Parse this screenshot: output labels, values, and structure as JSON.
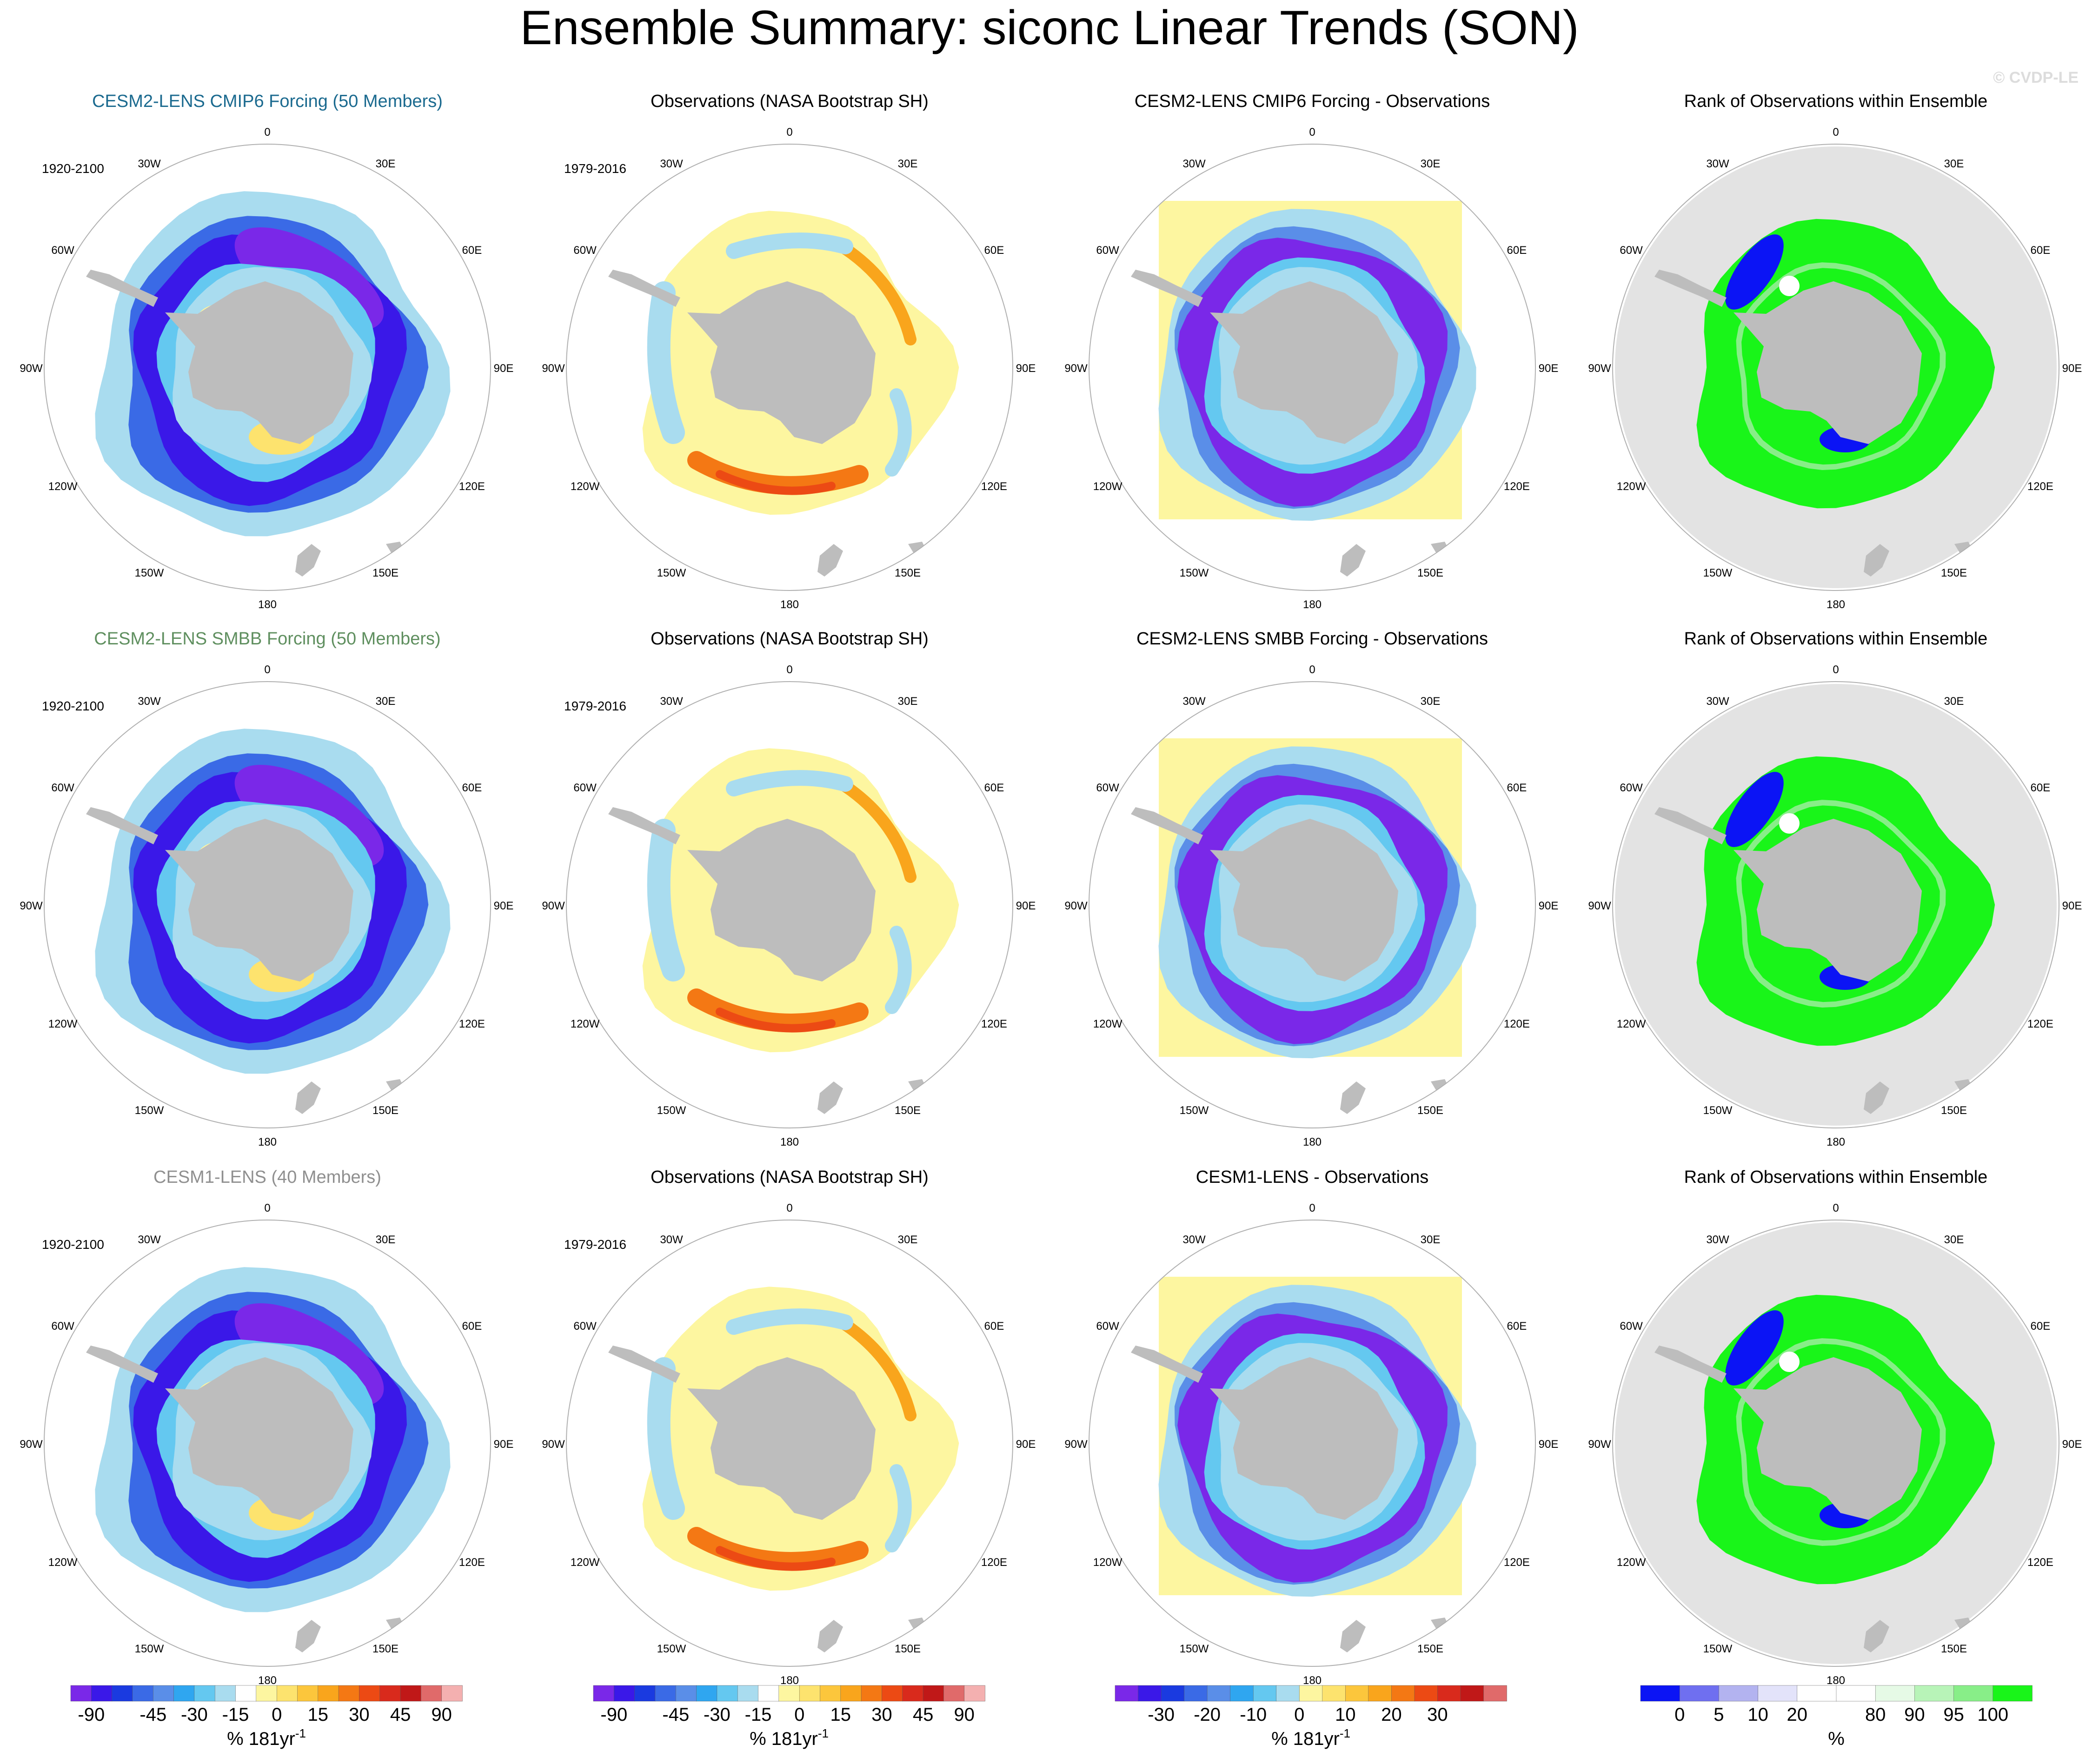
{
  "figure": {
    "title": "Ensemble Summary: siconc Linear Trends (SON)",
    "watermark": "© CVDP-LE"
  },
  "colors": {
    "land": "#bdbdbd",
    "mask": "#e3e3e3",
    "outline": "#b0b0b0",
    "title_row1": "#1b6a8f",
    "title_row2": "#5f8f5f",
    "title_row3": "#8f8f8f",
    "trend_scale": [
      "#7a28e8",
      "#3a18e8",
      "#1a3ae0",
      "#3a6ae6",
      "#5a8ee8",
      "#2fa6f0",
      "#64c8f0",
      "#a9dcef",
      "#ffffff",
      "#fdf6a0",
      "#fde36e",
      "#fcc63c",
      "#f9a51c",
      "#f47814",
      "#ec4a14",
      "#d92a1c",
      "#c01818",
      "#e06a6a",
      "#f4b0b0"
    ],
    "rank_scale": [
      "#0b14f5",
      "#6f6ff0",
      "#b3b3f0",
      "#e3e3fa",
      "#ffffff",
      "#ffffff",
      "#e6fae6",
      "#b8f4b8",
      "#88ee88",
      "#19f519"
    ]
  },
  "polar_axis": {
    "longitude_labels": [
      "0",
      "30E",
      "60E",
      "90E",
      "120E",
      "150E",
      "180",
      "150W",
      "120W",
      "90W",
      "60W",
      "30W"
    ]
  },
  "chart_data": [
    {
      "type": "heatmap",
      "row": 1,
      "col": 1,
      "title": "CESM2-LENS CMIP6 Forcing (50 Members)",
      "period": "1920-2100",
      "field": "model_trend",
      "projection": "south polar stereographic"
    },
    {
      "type": "heatmap",
      "row": 1,
      "col": 2,
      "title": "Observations (NASA Bootstrap SH)",
      "period": "1979-2016",
      "field": "obs_trend",
      "projection": "south polar stereographic"
    },
    {
      "type": "heatmap",
      "row": 1,
      "col": 3,
      "title": "CESM2-LENS CMIP6 Forcing - Observations",
      "period": "",
      "field": "difference",
      "projection": "south polar stereographic"
    },
    {
      "type": "heatmap",
      "row": 1,
      "col": 4,
      "title": "Rank of Observations within Ensemble",
      "period": "",
      "field": "rank",
      "projection": "south polar stereographic"
    },
    {
      "type": "heatmap",
      "row": 2,
      "col": 1,
      "title": "CESM2-LENS SMBB Forcing (50 Members)",
      "period": "1920-2100",
      "field": "model_trend",
      "projection": "south polar stereographic"
    },
    {
      "type": "heatmap",
      "row": 2,
      "col": 2,
      "title": "Observations (NASA Bootstrap SH)",
      "period": "1979-2016",
      "field": "obs_trend",
      "projection": "south polar stereographic"
    },
    {
      "type": "heatmap",
      "row": 2,
      "col": 3,
      "title": "CESM2-LENS SMBB Forcing - Observations",
      "period": "",
      "field": "difference",
      "projection": "south polar stereographic"
    },
    {
      "type": "heatmap",
      "row": 2,
      "col": 4,
      "title": "Rank of Observations within Ensemble",
      "period": "",
      "field": "rank",
      "projection": "south polar stereographic"
    },
    {
      "type": "heatmap",
      "row": 3,
      "col": 1,
      "title": "CESM1-LENS (40 Members)",
      "period": "1920-2100",
      "field": "model_trend",
      "projection": "south polar stereographic"
    },
    {
      "type": "heatmap",
      "row": 3,
      "col": 2,
      "title": "Observations (NASA Bootstrap SH)",
      "period": "1979-2016",
      "field": "obs_trend",
      "projection": "south polar stereographic"
    },
    {
      "type": "heatmap",
      "row": 3,
      "col": 3,
      "title": "CESM1-LENS - Observations",
      "period": "",
      "field": "difference",
      "projection": "south polar stereographic"
    },
    {
      "type": "heatmap",
      "row": 3,
      "col": 4,
      "title": "Rank of Observations within Ensemble",
      "period": "",
      "field": "rank",
      "projection": "south polar stereographic"
    }
  ],
  "colorbars": [
    {
      "col": 1,
      "tick_labels": [
        "-90",
        "-45",
        "-30",
        "-15",
        "0",
        "15",
        "30",
        "45",
        "90"
      ],
      "unit": "% 181yr",
      "unit_superscript": "-1"
    },
    {
      "col": 2,
      "tick_labels": [
        "-90",
        "-45",
        "-30",
        "-15",
        "0",
        "15",
        "30",
        "45",
        "90"
      ],
      "unit": "% 181yr",
      "unit_superscript": "-1"
    },
    {
      "col": 3,
      "tick_labels": [
        "-30",
        "-20",
        "-10",
        "0",
        "10",
        "20",
        "30"
      ],
      "unit": "% 181yr",
      "unit_superscript": "-1"
    },
    {
      "col": 4,
      "tick_labels": [
        "0",
        "5",
        "10",
        "20",
        "80",
        "90",
        "95",
        "100"
      ],
      "unit": "%",
      "unit_superscript": ""
    }
  ]
}
